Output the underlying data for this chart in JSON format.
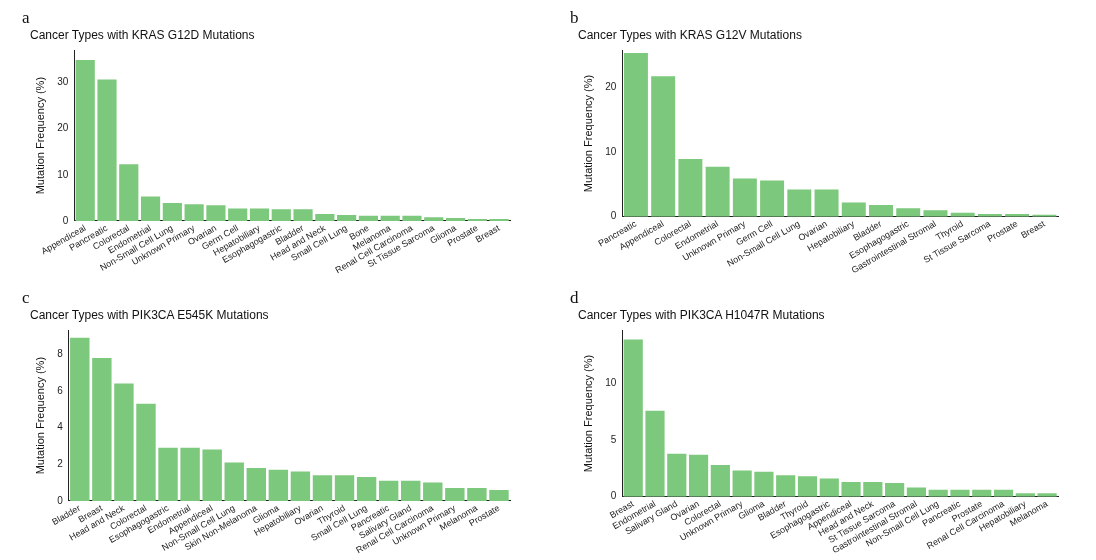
{
  "chart_data": [
    {
      "type": "bar",
      "title": "Cancer Types with KRAS G12D Mutations",
      "ylabel": "Mutation Frequency (%)",
      "annotations": [
        "a"
      ],
      "color": "#7cc87c",
      "grid": false,
      "legend": false,
      "categories": [
        "Appendiceal",
        "Pancreatic",
        "Colorectal",
        "Endometrial",
        "Non-Small Cell Lung",
        "Unknown Primary",
        "Ovarian",
        "Germ Cell",
        "Hepatobiliary",
        "Esophagogastric",
        "Bladder",
        "Head and Neck",
        "Small Cell Lung",
        "Bone",
        "Melanoma",
        "Renal Cell Carcinoma",
        "St Tissue Sarcoma",
        "Glioma",
        "Prostate",
        "Breast"
      ],
      "values": [
        34.9,
        30.7,
        12.3,
        5.3,
        3.9,
        3.6,
        3.4,
        2.7,
        2.7,
        2.5,
        2.5,
        1.5,
        1.3,
        1.1,
        1.1,
        1.1,
        0.8,
        0.6,
        0.4,
        0.4
      ],
      "ylim": [
        0,
        37
      ],
      "yticks": [
        0,
        10,
        20,
        30
      ]
    },
    {
      "type": "bar",
      "title": "Cancer Types with KRAS G12V Mutations",
      "ylabel": "Mutation Frequency (%)",
      "annotations": [
        "b"
      ],
      "color": "#7cc87c",
      "grid": false,
      "legend": false,
      "categories": [
        "Pancreatic",
        "Appendiceal",
        "Colorectal",
        "Endometrial",
        "Unknown Primary",
        "Germ Cell",
        "Non-Small Cell Lung",
        "Ovarian",
        "Hepatobiliary",
        "Bladder",
        "Esophagogastric",
        "Gastrointestinal Stromal",
        "Thyroid",
        "St Tissue Sarcoma",
        "Prostate",
        "Breast"
      ],
      "values": [
        25.3,
        21.7,
        8.9,
        7.7,
        5.9,
        5.6,
        4.2,
        4.2,
        2.2,
        1.8,
        1.3,
        1.0,
        0.6,
        0.4,
        0.4,
        0.3
      ],
      "ylim": [
        0,
        25.7
      ],
      "yticks": [
        0,
        10,
        20
      ]
    },
    {
      "type": "bar",
      "title": "Cancer Types with PIK3CA E545K Mutations",
      "ylabel": "Mutation Frequency (%)",
      "annotations": [
        "c"
      ],
      "color": "#7cc87c",
      "grid": false,
      "legend": false,
      "categories": [
        "Bladder",
        "Breast",
        "Head and Neck",
        "Colorectal",
        "Esophagogastric",
        "Endometrial",
        "Appendiceal",
        "Non-Small Cell Lung",
        "Skin Non-Melanoma",
        "Glioma",
        "Hepatobiliary",
        "Ovarian",
        "Thyroid",
        "Small Cell Lung",
        "Pancreatic",
        "Salivary Gland",
        "Renal Cell Carcinoma",
        "Unknown Primary",
        "Melanoma",
        "Prostate"
      ],
      "values": [
        8.9,
        7.8,
        6.4,
        5.3,
        2.9,
        2.9,
        2.8,
        2.1,
        1.8,
        1.7,
        1.6,
        1.4,
        1.4,
        1.3,
        1.1,
        1.1,
        1.0,
        0.7,
        0.7,
        0.6
      ],
      "ylim": [
        0,
        9.3
      ],
      "yticks": [
        0,
        2,
        4,
        6,
        8
      ]
    },
    {
      "type": "bar",
      "title": "Cancer Types with PIK3CA H1047R Mutations",
      "ylabel": "Mutation Frequency (%)",
      "annotations": [
        "d"
      ],
      "color": "#7cc87c",
      "grid": false,
      "legend": false,
      "categories": [
        "Breast",
        "Endometrial",
        "Salivary Gland",
        "Ovarian",
        "Colorectal",
        "Unknown Primary",
        "Glioma",
        "Bladder",
        "Thyroid",
        "Esophagogastric",
        "Appendiceal",
        "Head and Neck",
        "St Tissue Sarcoma",
        "Gastrointestinal Stromal",
        "Non-Small Cell Lung",
        "Pancreatic",
        "Prostate",
        "Renal Cell Carcinoma",
        "Hepatobiliary",
        "Melanoma"
      ],
      "values": [
        13.9,
        7.6,
        3.8,
        3.7,
        2.8,
        2.3,
        2.2,
        1.9,
        1.8,
        1.6,
        1.3,
        1.3,
        1.2,
        0.8,
        0.6,
        0.6,
        0.6,
        0.6,
        0.3,
        0.3
      ],
      "ylim": [
        0,
        14.7
      ],
      "yticks": [
        0,
        5,
        10
      ]
    }
  ]
}
